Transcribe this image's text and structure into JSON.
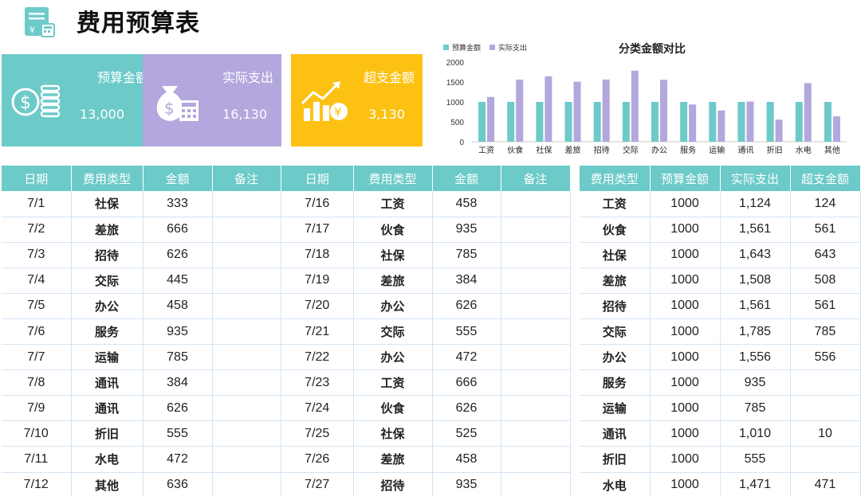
{
  "header": {
    "title": "费用预算表"
  },
  "cards": [
    {
      "label": "预算金额",
      "value": "13,000",
      "icon": "money-coins-icon"
    },
    {
      "label": "实际支出",
      "value": "16,130",
      "icon": "money-bag-calculator-icon"
    },
    {
      "label": "超支金额",
      "value": "3,130",
      "icon": "growth-chart-yen-icon"
    }
  ],
  "colors": {
    "teal": "#6ccac9",
    "purple": "#b3a7dd",
    "yellow": "#fcc113"
  },
  "chart_data": {
    "type": "bar",
    "title": "分类金额对比",
    "categories": [
      "工资",
      "伙食",
      "社保",
      "差旅",
      "招待",
      "交际",
      "办公",
      "服务",
      "运输",
      "通讯",
      "折旧",
      "水电",
      "其他"
    ],
    "series": [
      {
        "name": "预算金额",
        "color": "#6ccac9",
        "values": [
          1000,
          1000,
          1000,
          1000,
          1000,
          1000,
          1000,
          1000,
          1000,
          1000,
          1000,
          1000,
          1000
        ]
      },
      {
        "name": "实际支出",
        "color": "#b3a7dd",
        "values": [
          1124,
          1561,
          1643,
          1508,
          1561,
          1785,
          1556,
          935,
          785,
          1010,
          555,
          1471,
          636
        ]
      }
    ],
    "ylim": [
      0,
      2000
    ],
    "yticks": [
      0,
      500,
      1000,
      1500,
      2000
    ],
    "legend": "top-left",
    "grid": false
  },
  "table1": {
    "headers": [
      "日期",
      "费用类型",
      "金额",
      "备注"
    ],
    "rows": [
      [
        "7/1",
        "社保",
        "333",
        ""
      ],
      [
        "7/2",
        "差旅",
        "666",
        ""
      ],
      [
        "7/3",
        "招待",
        "626",
        ""
      ],
      [
        "7/4",
        "交际",
        "445",
        ""
      ],
      [
        "7/5",
        "办公",
        "458",
        ""
      ],
      [
        "7/6",
        "服务",
        "935",
        ""
      ],
      [
        "7/7",
        "运输",
        "785",
        ""
      ],
      [
        "7/8",
        "通讯",
        "384",
        ""
      ],
      [
        "7/9",
        "通讯",
        "626",
        ""
      ],
      [
        "7/10",
        "折旧",
        "555",
        ""
      ],
      [
        "7/11",
        "水电",
        "472",
        ""
      ],
      [
        "7/12",
        "其他",
        "636",
        ""
      ]
    ]
  },
  "table2": {
    "headers": [
      "日期",
      "费用类型",
      "金额",
      "备注"
    ],
    "rows": [
      [
        "7/16",
        "工资",
        "458",
        ""
      ],
      [
        "7/17",
        "伙食",
        "935",
        ""
      ],
      [
        "7/18",
        "社保",
        "785",
        ""
      ],
      [
        "7/19",
        "差旅",
        "384",
        ""
      ],
      [
        "7/20",
        "办公",
        "626",
        ""
      ],
      [
        "7/21",
        "交际",
        "555",
        ""
      ],
      [
        "7/22",
        "办公",
        "472",
        ""
      ],
      [
        "7/23",
        "工资",
        "666",
        ""
      ],
      [
        "7/24",
        "伙食",
        "626",
        ""
      ],
      [
        "7/25",
        "社保",
        "525",
        ""
      ],
      [
        "7/26",
        "差旅",
        "458",
        ""
      ],
      [
        "7/27",
        "招待",
        "935",
        ""
      ]
    ]
  },
  "table3": {
    "headers": [
      "费用类型",
      "预算金额",
      "实际支出",
      "超支金额"
    ],
    "rows": [
      [
        "工资",
        "1000",
        "1,124",
        "124"
      ],
      [
        "伙食",
        "1000",
        "1,561",
        "561"
      ],
      [
        "社保",
        "1000",
        "1,643",
        "643"
      ],
      [
        "差旅",
        "1000",
        "1,508",
        "508"
      ],
      [
        "招待",
        "1000",
        "1,561",
        "561"
      ],
      [
        "交际",
        "1000",
        "1,785",
        "785"
      ],
      [
        "办公",
        "1000",
        "1,556",
        "556"
      ],
      [
        "服务",
        "1000",
        "935",
        ""
      ],
      [
        "运输",
        "1000",
        "785",
        ""
      ],
      [
        "通讯",
        "1000",
        "1,010",
        "10"
      ],
      [
        "折旧",
        "1000",
        "555",
        ""
      ],
      [
        "水电",
        "1000",
        "1,471",
        "471"
      ]
    ]
  }
}
